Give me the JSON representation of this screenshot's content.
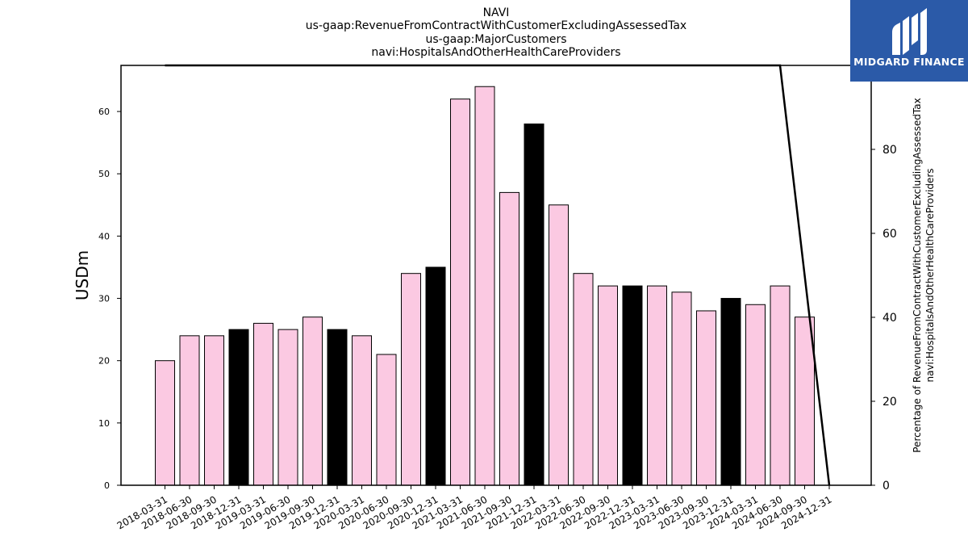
{
  "header": {
    "lines": [
      "NAVI",
      "us-gaap:RevenueFromContractWithCustomerExcludingAssessedTax",
      "us-gaap:MajorCustomers",
      "navi:HospitalsAndOtherHealthCareProviders"
    ]
  },
  "logo": {
    "text": "MIDGARD FINANCE",
    "background": "#2b5aa8",
    "icon": "midgard-logo-icon"
  },
  "chart_data": {
    "type": "bar",
    "ylabel": "USDm",
    "y2label_line1": "Percentage of RevenueFromContractWithCustomerExcludingAssessedTax",
    "y2label_line2": "navi:HospitalsAndOtherHealthCareProviders",
    "ylim": [
      0,
      67.4
    ],
    "yticks": [
      0,
      10,
      20,
      30,
      40,
      50,
      60
    ],
    "y2lim": [
      0,
      100
    ],
    "y2ticks": [
      0,
      20,
      40,
      60,
      80
    ],
    "categories": [
      "2018-03-31",
      "2018-06-30",
      "2018-09-30",
      "2018-12-31",
      "2019-03-31",
      "2019-06-30",
      "2019-09-30",
      "2019-12-31",
      "2020-03-31",
      "2020-06-30",
      "2020-09-30",
      "2020-12-31",
      "2021-03-31",
      "2021-06-30",
      "2021-09-30",
      "2021-12-31",
      "2022-03-31",
      "2022-06-30",
      "2022-09-30",
      "2022-12-31",
      "2023-03-31",
      "2023-06-30",
      "2023-09-30",
      "2023-12-31",
      "2024-03-31",
      "2024-06-30",
      "2024-09-30",
      "2024-12-31"
    ],
    "values": [
      20,
      24,
      24,
      25,
      26,
      25,
      27,
      25,
      24,
      21,
      34,
      35,
      62,
      64,
      47,
      58,
      45,
      34,
      32,
      32,
      32,
      31,
      28,
      30,
      29,
      32,
      27,
      null
    ],
    "highlight": [
      false,
      false,
      false,
      true,
      false,
      false,
      false,
      true,
      false,
      false,
      false,
      true,
      false,
      false,
      false,
      true,
      false,
      false,
      false,
      true,
      false,
      false,
      false,
      true,
      false,
      false,
      false,
      false
    ],
    "bar_color": "#fbc9e2",
    "highlight_color": "#000000",
    "percentage_line": {
      "x": [
        "2018-03-31",
        "2024-06-30",
        "2024-12-31"
      ],
      "y": [
        100,
        100,
        0
      ],
      "color": "#000000"
    },
    "grid": false
  }
}
